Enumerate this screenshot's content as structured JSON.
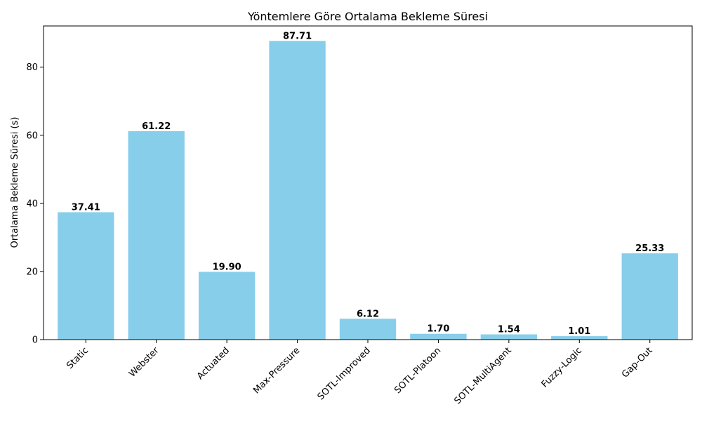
{
  "chart_data": {
    "type": "bar",
    "title": "Yöntemlere Göre Ortalama Bekleme Süresi",
    "xlabel": "",
    "ylabel": "Ortalama Bekleme Süresi (s)",
    "categories": [
      "Static",
      "Webster",
      "Actuated",
      "Max-Pressure",
      "SOTL-Improved",
      "SOTL-Platoon",
      "SOTL-MultiAgent",
      "Fuzzy-Logic",
      "Gap-Out"
    ],
    "values": [
      37.41,
      61.22,
      19.9,
      87.71,
      6.12,
      1.7,
      1.54,
      1.01,
      25.33
    ],
    "value_labels": [
      "37.41",
      "61.22",
      "19.90",
      "87.71",
      "6.12",
      "1.70",
      "1.54",
      "1.01",
      "25.33"
    ],
    "ylim": [
      0,
      92.1
    ],
    "yticks": [
      0,
      20,
      40,
      60,
      80
    ],
    "ytick_labels": [
      "0",
      "20",
      "40",
      "60",
      "80"
    ],
    "bar_color": "#87ceeb",
    "grid": false,
    "legend": "none"
  }
}
